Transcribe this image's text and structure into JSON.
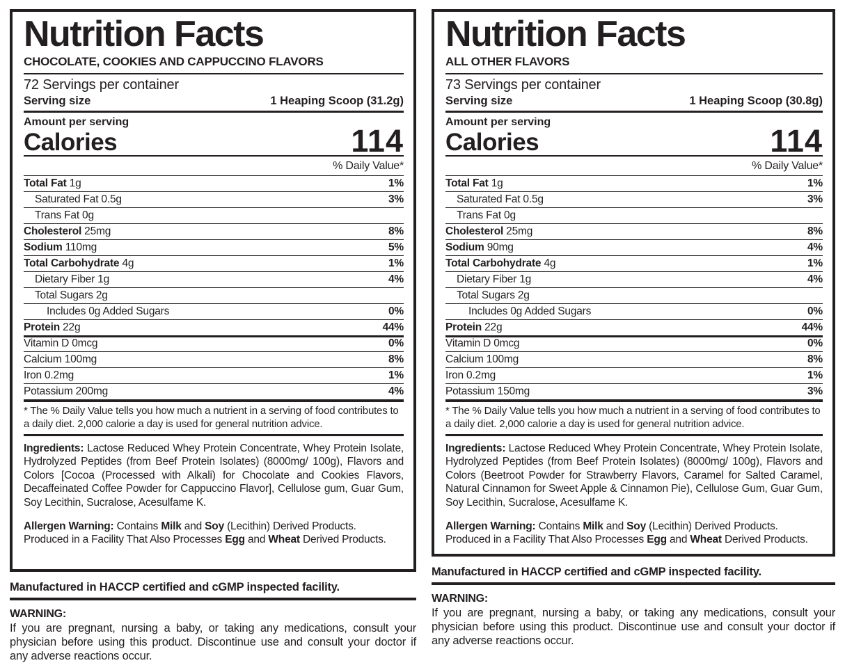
{
  "colors": {
    "ink": "#231f20",
    "background": "#ffffff"
  },
  "panels": [
    {
      "title": "Nutrition Facts",
      "flavor": "CHOCOLATE, COOKIES  AND CAPPUCCINO FLAVORS",
      "servings_per_container": "72 Servings per container",
      "serving_size_label": "Serving size",
      "serving_size_value": "1 Heaping Scoop (31.2g)",
      "amount_per_serving": "Amount per serving",
      "calories_label": "Calories",
      "calories_value": "114",
      "daily_value_header": "% Daily Value*",
      "nutrients": [
        {
          "bold": "Total Fat",
          "rest": " 1g",
          "dv": "1%",
          "indent": 0,
          "sep": "thin"
        },
        {
          "bold": "",
          "rest": "Saturated Fat 0.5g",
          "dv": "3%",
          "indent": 1,
          "sep": "thin"
        },
        {
          "bold": "",
          "rest": "Trans Fat 0g",
          "dv": "",
          "indent": 1,
          "sep": "thin"
        },
        {
          "bold": "Cholesterol",
          "rest": " 25mg",
          "dv": "8%",
          "indent": 0,
          "sep": "thin"
        },
        {
          "bold": "Sodium",
          "rest": " 110mg",
          "dv": "5%",
          "indent": 0,
          "sep": "thin"
        },
        {
          "bold": "Total Carbohydrate",
          "rest": " 4g",
          "dv": "1%",
          "indent": 0,
          "sep": "thin"
        },
        {
          "bold": "",
          "rest": "Dietary Fiber 1g",
          "dv": "4%",
          "indent": 1,
          "sep": "thin"
        },
        {
          "bold": "",
          "rest": "Total Sugars 2g",
          "dv": "",
          "indent": 1,
          "sep": "thin"
        },
        {
          "bold": "",
          "rest": "Includes 0g Added Sugars",
          "dv": "0%",
          "indent": 2,
          "sep": "thin"
        },
        {
          "bold": "Protein",
          "rest": " 22g",
          "dv": "44%",
          "indent": 0,
          "sep": "thin"
        },
        {
          "bold": "",
          "rest": "Vitamin D 0mcg",
          "dv": "0%",
          "indent": 0,
          "sep": "medium"
        },
        {
          "bold": "",
          "rest": "Calcium 100mg",
          "dv": "8%",
          "indent": 0,
          "sep": "thin"
        },
        {
          "bold": "",
          "rest": "Iron 0.2mg",
          "dv": "1%",
          "indent": 0,
          "sep": "thin"
        },
        {
          "bold": "",
          "rest": "Potassium 200mg",
          "dv": "4%",
          "indent": 0,
          "sep": "thin"
        }
      ],
      "footnote": "* The % Daily Value tells you how much a nutrient in a serving of food contributes to a daily diet. 2,000 calorie a day is used for general nutrition advice.",
      "ingredients_label": "Ingredients:",
      "ingredients_text": "Lactose Reduced Whey Protein Concentrate, Whey Protein Isolate, Hydrolyzed Peptides (from Beef Protein Isolates) (8000mg/ 100g), Flavors and Colors [Cocoa (Processed with Alkali) for Chocolate and Cookies Flavors, Decaffeinated Coffee Powder for Cappuccino Flavor], Cellulose gum, Guar Gum, Soy Lecithin, Sucralose, Acesulfame K.",
      "allergen": {
        "lead": "Allergen Warning:",
        "contains": "Contains",
        "milk": "Milk",
        "and1": "and",
        "soy": "Soy",
        "tail1": "(Lecithin) Derived Products.",
        "line2_pre": "Produced in a Facility That Also Processes",
        "egg": "Egg",
        "and2": "and",
        "wheat": "Wheat",
        "tail2": "Derived Products."
      },
      "manufactured": "Manufactured in HACCP certified and cGMP inspected facility.",
      "warning_label": "WARNING:",
      "warning_text": "If you are pregnant, nursing a baby, or taking any medications, consult your physician before using this product. Discontinue use and consult your doctor if any adverse reactions occur."
    },
    {
      "title": "Nutrition Facts",
      "flavor": "ALL OTHER FLAVORS",
      "servings_per_container": "73 Servings per container",
      "serving_size_label": "Serving size",
      "serving_size_value": "1 Heaping Scoop (30.8g)",
      "amount_per_serving": "Amount per serving",
      "calories_label": "Calories",
      "calories_value": "114",
      "daily_value_header": "% Daily Value*",
      "nutrients": [
        {
          "bold": "Total Fat",
          "rest": " 1g",
          "dv": "1%",
          "indent": 0,
          "sep": "thin"
        },
        {
          "bold": "",
          "rest": "Saturated Fat 0.5g",
          "dv": "3%",
          "indent": 1,
          "sep": "thin"
        },
        {
          "bold": "",
          "rest": "Trans Fat 0g",
          "dv": "",
          "indent": 1,
          "sep": "thin"
        },
        {
          "bold": "Cholesterol",
          "rest": " 25mg",
          "dv": "8%",
          "indent": 0,
          "sep": "thin"
        },
        {
          "bold": "Sodium",
          "rest": " 90mg",
          "dv": "4%",
          "indent": 0,
          "sep": "thin"
        },
        {
          "bold": "Total Carbohydrate",
          "rest": " 4g",
          "dv": "1%",
          "indent": 0,
          "sep": "thin"
        },
        {
          "bold": "",
          "rest": "Dietary Fiber 1g",
          "dv": "4%",
          "indent": 1,
          "sep": "thin"
        },
        {
          "bold": "",
          "rest": "Total Sugars 2g",
          "dv": "",
          "indent": 1,
          "sep": "thin"
        },
        {
          "bold": "",
          "rest": "Includes 0g Added Sugars",
          "dv": "0%",
          "indent": 2,
          "sep": "thin"
        },
        {
          "bold": "Protein",
          "rest": " 22g",
          "dv": "44%",
          "indent": 0,
          "sep": "thin"
        },
        {
          "bold": "",
          "rest": "Vitamin D 0mcg",
          "dv": "0%",
          "indent": 0,
          "sep": "medium"
        },
        {
          "bold": "",
          "rest": "Calcium 100mg",
          "dv": "8%",
          "indent": 0,
          "sep": "thin"
        },
        {
          "bold": "",
          "rest": "Iron 0.2mg",
          "dv": "1%",
          "indent": 0,
          "sep": "thin"
        },
        {
          "bold": "",
          "rest": "Potassium 150mg",
          "dv": "3%",
          "indent": 0,
          "sep": "thin"
        }
      ],
      "footnote": "* The % Daily Value tells you how much a nutrient in a serving of food contributes to a daily diet. 2,000 calorie a day is used for general nutrition advice.",
      "ingredients_label": "Ingredients:",
      "ingredients_text": "Lactose Reduced Whey Protein Concentrate, Whey Protein Isolate, Hydrolyzed Peptides (from Beef Protein Isolates) (8000mg/ 100g), Flavors and Colors (Beetroot Powder for Strawberry Flavors, Caramel for Salted Caramel, Natural Cinnamon for Sweet Apple & Cinnamon Pie), Cellulose Gum, Guar Gum, Soy Lecithin, Sucralose, Acesulfame K.",
      "allergen": {
        "lead": "Allergen Warning:",
        "contains": "Contains",
        "milk": "Milk",
        "and1": "and",
        "soy": "Soy",
        "tail1": "(Lecithin) Derived Products.",
        "line2_pre": "Produced in a Facility That Also Processes",
        "egg": "Egg",
        "and2": "and",
        "wheat": "Wheat",
        "tail2": "Derived Products."
      },
      "manufactured": "Manufactured in HACCP certified and cGMP inspected facility.",
      "warning_label": "WARNING:",
      "warning_text": "If you are pregnant, nursing a baby, or taking any medications, consult your physician before using this product. Discontinue use and consult your doctor if any adverse reactions occur."
    }
  ]
}
